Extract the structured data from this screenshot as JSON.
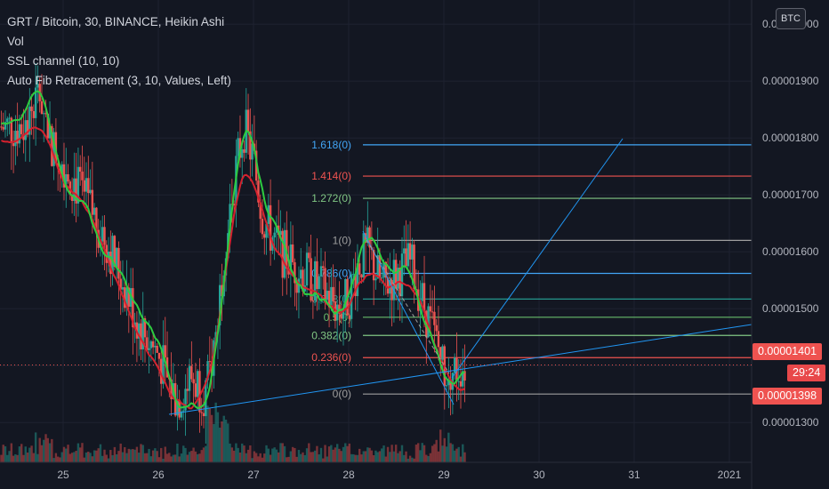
{
  "legend": {
    "title": "GRT / Bitcoin, 30, BINANCE, Heikin Ashi",
    "vol": "Vol",
    "ssl": "SSL channel (10, 10)",
    "fib": "Auto Fib Retracement (3, 10, Values, Left)"
  },
  "currency_badge": "BTC",
  "price_tags": {
    "last": "0.00001401",
    "countdown": "29:24",
    "low": "0.00001398"
  },
  "colors": {
    "background": "#131722",
    "bull": "#26a69a",
    "bear": "#ef5350",
    "ssl_up": "#2ecc40",
    "ssl_down": "#d5212e",
    "trendline": "#2196f3"
  },
  "chart_data": {
    "type": "candlestick",
    "x_ticks": [
      "25",
      "26",
      "27",
      "28",
      "29",
      "30",
      "31",
      "2021"
    ],
    "y_ticks": [
      "0.00001900",
      "0.00001800",
      "0.00001700",
      "0.00001600",
      "0.00001500",
      "0.00001300"
    ],
    "y_top_label": "0.00002000",
    "y_range": [
      1.23e-05,
      2.03e-05
    ],
    "fib_levels": [
      {
        "label": "1.618(0)",
        "price": 1.788e-05,
        "color": "#42a5f5"
      },
      {
        "label": "1.414(0)",
        "price": 1.733e-05,
        "color": "#ef5350"
      },
      {
        "label": "1.272(0)",
        "price": 1.694e-05,
        "color": "#81c784"
      },
      {
        "label": "1(0)",
        "price": 1.62e-05,
        "color": "#9e9e9e"
      },
      {
        "label": "0.786(0)",
        "price": 1.562e-05,
        "color": "#42a5f5"
      },
      {
        "label": "0.618(0)",
        "price": 1.517e-05,
        "color": "#26a69a"
      },
      {
        "label": "0.5(0)",
        "price": 1.485e-05,
        "color": "#66bb6a"
      },
      {
        "label": "0.382(0)",
        "price": 1.453e-05,
        "color": "#81c784"
      },
      {
        "label": "0.236(0)",
        "price": 1.414e-05,
        "color": "#ef5350"
      },
      {
        "label": "0(0)",
        "price": 1.35e-05,
        "color": "#9e9e9e"
      }
    ],
    "price_path": [
      [
        24.6,
        1.82e-05
      ],
      [
        24.75,
        1.88e-05
      ],
      [
        24.9,
        1.78e-05
      ],
      [
        25.0,
        1.76e-05
      ],
      [
        25.2,
        1.7e-05
      ],
      [
        25.4,
        1.64e-05
      ],
      [
        25.6,
        1.56e-05
      ],
      [
        25.8,
        1.47e-05
      ],
      [
        26.0,
        1.42e-05
      ],
      [
        26.1,
        1.37e-05
      ],
      [
        26.2,
        1.34e-05
      ],
      [
        26.35,
        1.38e-05
      ],
      [
        26.5,
        1.35e-05
      ],
      [
        26.6,
        1.45e-05
      ],
      [
        26.7,
        1.62e-05
      ],
      [
        26.8,
        1.73e-05
      ],
      [
        26.9,
        1.82e-05
      ],
      [
        27.0,
        1.76e-05
      ],
      [
        27.1,
        1.66e-05
      ],
      [
        27.25,
        1.61e-05
      ],
      [
        27.4,
        1.58e-05
      ],
      [
        27.55,
        1.56e-05
      ],
      [
        27.75,
        1.53e-05
      ],
      [
        27.9,
        1.5e-05
      ],
      [
        28.0,
        1.52e-05
      ],
      [
        28.1,
        1.58e-05
      ],
      [
        28.2,
        1.6e-05
      ],
      [
        28.35,
        1.54e-05
      ],
      [
        28.5,
        1.56e-05
      ],
      [
        28.65,
        1.58e-05
      ],
      [
        28.8,
        1.5e-05
      ],
      [
        28.9,
        1.45e-05
      ],
      [
        29.0,
        1.4e-05
      ],
      [
        29.1,
        1.39e-05
      ],
      [
        29.2,
        1.401e-05
      ]
    ]
  }
}
